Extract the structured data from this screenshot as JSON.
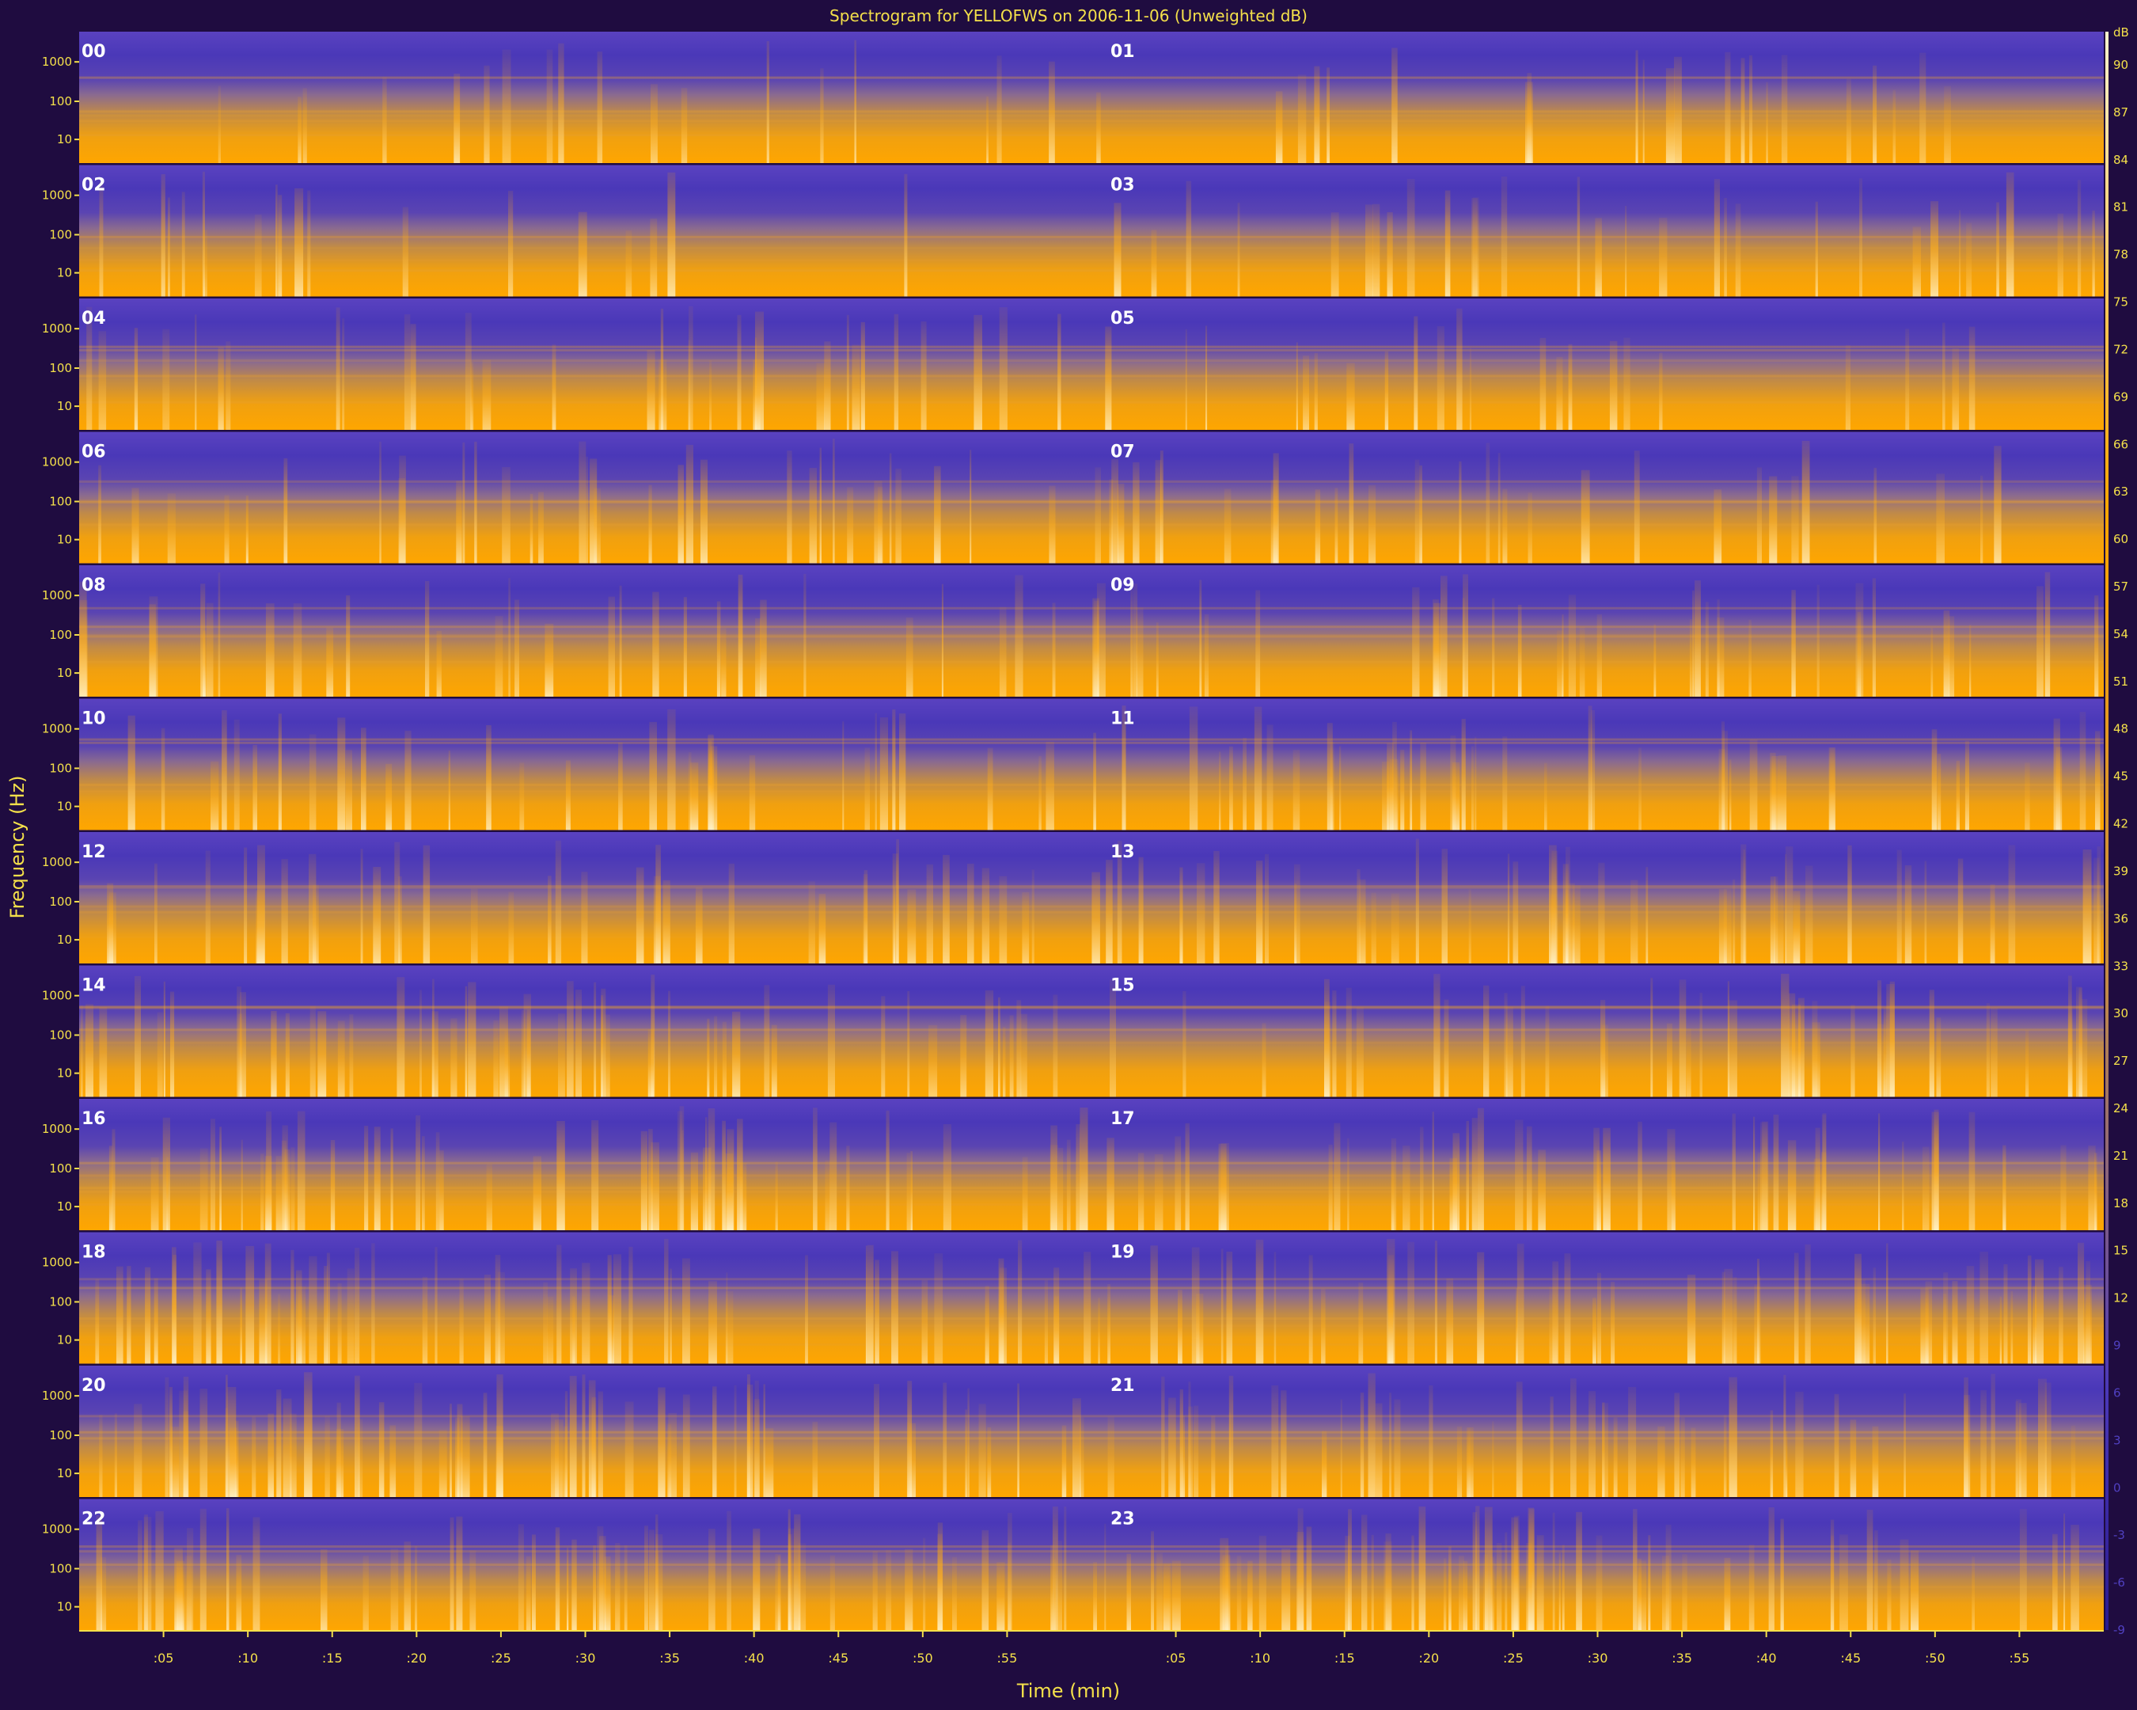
{
  "chart_data": {
    "type": "heatmap",
    "title": "Spectrogram for YELLOFWS on 2006-11-06 (Unweighted dB)",
    "xlabel": "Time (min)",
    "ylabel": "Frequency (Hz)",
    "rows": [
      {
        "left": "00",
        "right": "01"
      },
      {
        "left": "02",
        "right": "03"
      },
      {
        "left": "04",
        "right": "05"
      },
      {
        "left": "06",
        "right": "07"
      },
      {
        "left": "08",
        "right": "09"
      },
      {
        "left": "10",
        "right": "11"
      },
      {
        "left": "12",
        "right": "13"
      },
      {
        "left": "14",
        "right": "15"
      },
      {
        "left": "16",
        "right": "17"
      },
      {
        "left": "18",
        "right": "19"
      },
      {
        "left": "20",
        "right": "21"
      },
      {
        "left": "22",
        "right": "23"
      }
    ],
    "freq_ticks": [
      "1000",
      "100",
      "10"
    ],
    "time_ticks": [
      ":05",
      ":10",
      ":15",
      ":20",
      ":25",
      ":30",
      ":35",
      ":40",
      ":45",
      ":50",
      ":55"
    ],
    "colorbar": {
      "unit": "dB",
      "min": -9,
      "max": 90,
      "ticks": [
        "90",
        "87",
        "84",
        "81",
        "78",
        "75",
        "72",
        "69",
        "66",
        "63",
        "60",
        "57",
        "54",
        "51",
        "48",
        "45",
        "42",
        "39",
        "36",
        "33",
        "30",
        "27",
        "24",
        "21",
        "18",
        "15",
        "12",
        "9",
        "6",
        "3",
        "0",
        "-3",
        "-6",
        "-9"
      ]
    },
    "colors": {
      "background": "#1f0c40",
      "low": "#4a38b8",
      "mid": "#c08a48",
      "high": "#ffa600",
      "peak": "#fff3cc",
      "text": "#f4e04a"
    }
  }
}
